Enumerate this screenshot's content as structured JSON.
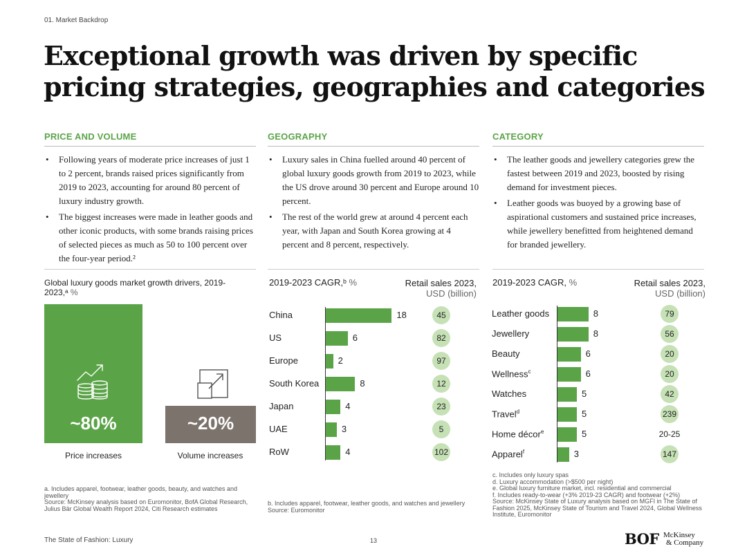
{
  "header": {
    "section": "01. Market Backdrop",
    "title": "Exceptional growth was driven by specific pricing strategies, geographies and categories"
  },
  "columns": [
    {
      "heading": "PRICE AND VOLUME",
      "bullets": [
        "Following years of moderate price increases of just 1 to 2 percent, brands raised prices significantly from 2019 to 2023, accounting for around 80 percent of luxury industry growth.",
        "The biggest increases were made in leather goods and other iconic products, with some brands raising prices of selected pieces as much as 50 to 100 percent over the four-year period.²"
      ]
    },
    {
      "heading": "GEOGRAPHY",
      "bullets": [
        "Luxury sales in China fuelled around 40 percent of global luxury goods growth from 2019 to 2023, while the US drove around 30 percent and Europe around 10 percent.",
        "The rest of the world grew at around 4 percent each year, with Japan and South Korea growing at 4 percent and 8 percent, respectively."
      ]
    },
    {
      "heading": "CATEGORY",
      "bullets": [
        "The leather goods and jewellery categories grew the fastest between 2019 and 2023, boosted by rising demand for investment pieces.",
        "Leather goods was buoyed by a growing base of aspirational customers and sustained price increases, while jewellery benefitted from heightened demand for branded jewellery."
      ]
    }
  ],
  "price_volume": {
    "title_main": "Global luxury goods market growth drivers, 2019-2023,ᵃ",
    "title_unit": "%",
    "price_value": "~80%",
    "price_label": "Price increases",
    "volume_value": "~20%",
    "volume_label": "Volume increases",
    "icons": [
      "coins-growth-icon",
      "expand-arrow-icon"
    ],
    "colors": {
      "price": "#5aa447",
      "volume": "#7c736c"
    },
    "notes": [
      "a. Includes apparel, footwear, leather goods, beauty, and watches and jewellery",
      "Source: McKinsey analysis based on Euromonitor, BofA Global Research, Julius Bär Global Wealth Report 2024, Citi Research estimates"
    ]
  },
  "geography": {
    "cagr_main": "2019-2023 CAGR,ᵇ",
    "cagr_unit": "%",
    "sales_main": "Retail sales 2023,",
    "sales_unit": "USD (billion)",
    "notes": [
      "b. Includes apparel, footwear, leather goods, and watches and jewellery",
      "Source: Euromonitor"
    ]
  },
  "category": {
    "cagr_main": "2019-2023 CAGR,",
    "cagr_unit": "%",
    "sales_main": "Retail sales 2023,",
    "sales_unit": "USD (billion)",
    "notes": [
      "c. Includes only luxury spas",
      "d. Luxury accommodation (>$500 per night)",
      "e. Global luxury furniture market, incl. residential and commercial",
      "f. Includes ready-to-wear (+3% 2019-23 CAGR) and footwear (+2%)",
      "Source: McKinsey State of Luxury analysis based on MGFI in The State of Fashion 2025, McKinsey State of Tourism and Travel 2024, Global Wellness Institute, Euromonitor"
    ]
  },
  "chart_data": [
    {
      "type": "bar",
      "title": "Global luxury goods market growth drivers, 2019-2023, %",
      "categories": [
        "Price increases",
        "Volume increases"
      ],
      "values": [
        80,
        20
      ],
      "labels": [
        "~80%",
        "~20%"
      ]
    },
    {
      "type": "bar",
      "orientation": "horizontal",
      "xlabel": "2019-2023 CAGR, %",
      "categories": [
        "China",
        "US",
        "Europe",
        "South Korea",
        "Japan",
        "UAE",
        "RoW"
      ],
      "values": [
        18,
        6,
        2,
        8,
        4,
        3,
        4
      ],
      "retail_sales_label": "Retail sales 2023, USD (billion)",
      "retail_sales": [
        "45",
        "82",
        "97",
        "12",
        "23",
        "5",
        "102"
      ]
    },
    {
      "type": "bar",
      "orientation": "horizontal",
      "xlabel": "2019-2023 CAGR, %",
      "categories": [
        "Leather goods",
        "Jewellery",
        "Beauty",
        "Wellness",
        "Watches",
        "Travel",
        "Home décor",
        "Apparel"
      ],
      "superscripts": [
        "",
        "",
        "",
        "c",
        "",
        "d",
        "e",
        "f"
      ],
      "values": [
        8,
        8,
        6,
        6,
        5,
        5,
        5,
        3
      ],
      "retail_sales_label": "Retail sales 2023, USD (billion)",
      "retail_sales": [
        "79",
        "56",
        "20",
        "20",
        "42",
        "239",
        "20-25",
        "147"
      ]
    }
  ],
  "bar_color": "#5aa447",
  "bubble_color": "#c6e1b6",
  "footer": {
    "publication": "The State of Fashion: Luxury",
    "page": "13",
    "logo_bof": "BOF",
    "logo_mck_1": "McKinsey",
    "logo_mck_2": "& Company"
  }
}
